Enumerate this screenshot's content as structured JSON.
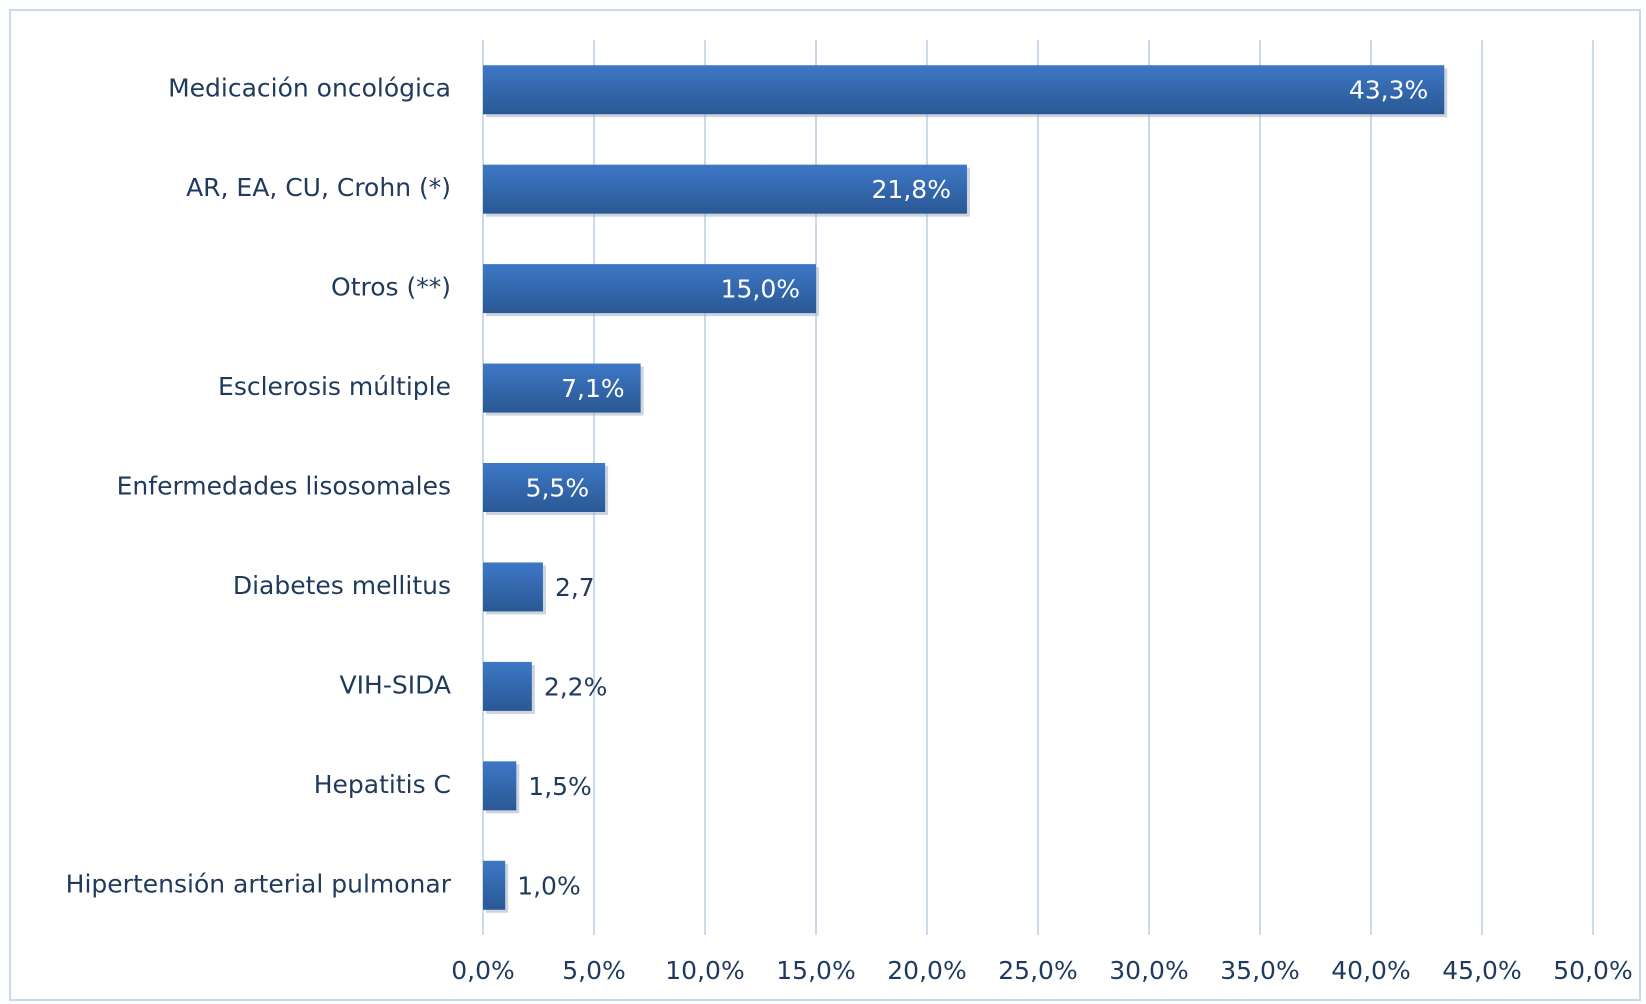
{
  "chart_data": {
    "type": "bar",
    "orientation": "horizontal",
    "categories": [
      "Medicación oncológica",
      "AR, EA, CU, Crohn (*)",
      "Otros (**)",
      "Esclerosis múltiple",
      "Enfermedades lisosomales",
      "Diabetes mellitus",
      "VIH-SIDA",
      "Hepatitis C",
      "Hipertensión arterial pulmonar"
    ],
    "values": [
      43.3,
      21.8,
      15.0,
      7.1,
      5.5,
      2.7,
      2.2,
      1.5,
      1.0
    ],
    "value_labels": [
      "43,3%",
      "21,8%",
      "15,0%",
      "7,1%",
      "5,5%",
      "2,7",
      "2,2%",
      "1,5%",
      "1,0%"
    ],
    "color": "#3566ac",
    "xlim": [
      0,
      50
    ],
    "xticks": [
      {
        "value": 0,
        "label": "0,0%"
      },
      {
        "value": 5,
        "label": "5,0%"
      },
      {
        "value": 10,
        "label": "10,0%"
      },
      {
        "value": 15,
        "label": "15,0%"
      },
      {
        "value": 20,
        "label": "20,0%"
      },
      {
        "value": 25,
        "label": "25,0%"
      },
      {
        "value": 30,
        "label": "30,0%"
      },
      {
        "value": 35,
        "label": "35,0%"
      },
      {
        "value": 40,
        "label": "40,0%"
      },
      {
        "value": 45,
        "label": "45,0%"
      },
      {
        "value": 50,
        "label": "50,0%"
      }
    ],
    "grid": true
  }
}
